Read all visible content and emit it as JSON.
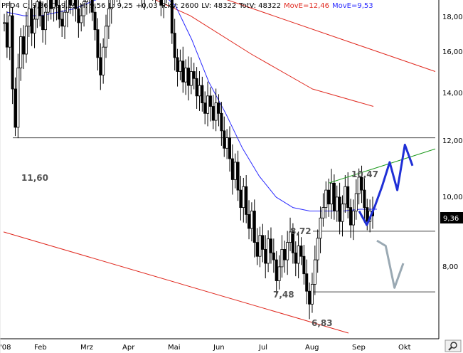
{
  "header": {
    "symbol": "PFD4",
    "close": "C: 9,36",
    "open": "O: 9,25",
    "high": "H: 9,56",
    "low": "L: 9,25",
    "change": "+0,03",
    "tick_volume": "TckV: 2600",
    "last_volume": "LV: 48322",
    "total_volume": "TotV: 48322",
    "move1": "MovE=12,46",
    "move2": "MovE=9,53",
    "move1_color": "#e0281e",
    "move2_color": "#2a2aff"
  },
  "price_tag": "9,36",
  "zoom_icon": "magnifier-icon",
  "chart_data": {
    "type": "candlestick",
    "title": "",
    "xlabel": "",
    "ylabel": "",
    "ylim": [
      6.0,
      18.5
    ],
    "x_ticks": [
      "'08",
      "Feb",
      "Mrz",
      "Apr",
      "Mai",
      "Jun",
      "Jul",
      "Aug",
      "Sep",
      "Okt"
    ],
    "y_ticks": [
      "18,00",
      "16,00",
      "14,00",
      "12,00",
      "10,00",
      "8,00"
    ],
    "grid": false,
    "annotations": [
      "11,60",
      "10,47",
      "8,72",
      "7,48",
      "6,83"
    ],
    "horizontal_levels": [
      11.6,
      8.92,
      7.18
    ],
    "colors": {
      "ma_long": "#e0281e",
      "ma_short": "#2a2aff",
      "channel": "#e0281e",
      "trend": "#1e9a1e",
      "projection": "#1f2fd6",
      "projection_alt": "#9aa9b3",
      "candles": "#000000"
    },
    "series_close": [
      14.9,
      14.2,
      15.1,
      13.0,
      11.9,
      13.6,
      14.5,
      14.0,
      14.8,
      15.3,
      14.6,
      15.0,
      15.5,
      15.1,
      14.7,
      15.2,
      15.6,
      15.3,
      15.7,
      15.4,
      15.0,
      14.8,
      15.2,
      15.6,
      15.4,
      15.8,
      15.3,
      14.9,
      15.1,
      15.5,
      15.9,
      15.6,
      15.2,
      14.7,
      13.9,
      13.4,
      14.2,
      14.8,
      15.3,
      15.6,
      16.1,
      15.8,
      16.3,
      16.8,
      16.5,
      16.2,
      16.6,
      16.9,
      16.4,
      16.0,
      15.7,
      16.2,
      16.5,
      16.1,
      15.9,
      16.3,
      15.8,
      15.4,
      15.9,
      16.3,
      16.1,
      14.6,
      13.9,
      13.5,
      13.8,
      13.2,
      13.6,
      13.1,
      13.5,
      13.3,
      12.8,
      13.1,
      12.6,
      12.3,
      12.8,
      12.5,
      12.1,
      12.6,
      12.3,
      11.8,
      11.3,
      11.6,
      11.0,
      10.4,
      10.9,
      10.1,
      9.6,
      10.2,
      9.4,
      9.0,
      9.5,
      8.6,
      8.2,
      8.8,
      8.4,
      8.0,
      8.7,
      8.3,
      8.1,
      7.5,
      7.9,
      8.4,
      8.1,
      8.6,
      8.9,
      8.3,
      8.0,
      8.5,
      8.2,
      7.7,
      7.2,
      6.83,
      7.4,
      8.1,
      8.72,
      9.3,
      9.6,
      10.1,
      9.7,
      10.3,
      9.5,
      9.9,
      9.2,
      9.7,
      10.2,
      9.6,
      9.1,
      9.5,
      10.0,
      10.47,
      10.1,
      9.6,
      9.2,
      9.5,
      9.36
    ],
    "ma_long_values": [
      17.7,
      16.9,
      15.9,
      15.1,
      14.0,
      13.0,
      12.5
    ],
    "ma_short_values": [
      15.2,
      15.1,
      15.1,
      15.2,
      15.3,
      15.5,
      15.7,
      15.8,
      15.9,
      15.8,
      15.4,
      14.4,
      13.2,
      12.3,
      11.3,
      10.5,
      9.9,
      9.6,
      9.5,
      9.5,
      9.5,
      9.55,
      9.55
    ],
    "channel_upper": [
      17.8,
      13.5
    ],
    "channel_lower": [
      8.9,
      6.0
    ],
    "projection_path": [
      9.5,
      9.1,
      9.6,
      10.2,
      10.9,
      10.1,
      11.4,
      10.8
    ],
    "projection_alt_path": [
      8.65,
      8.5,
      7.3,
      8.0
    ]
  }
}
